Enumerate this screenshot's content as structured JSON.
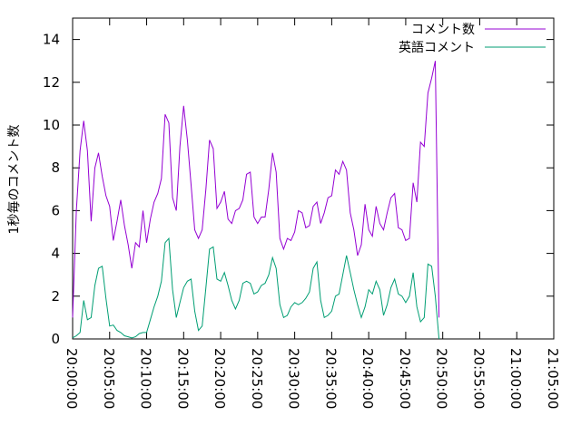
{
  "chart_data": {
    "type": "line",
    "title": "",
    "xlabel": "",
    "ylabel": "1秒毎のコメント数",
    "xlim": [
      0,
      65
    ],
    "ylim": [
      0,
      15
    ],
    "x_unit": "minutes after 20:00:00",
    "x_ticks": [
      0,
      5,
      10,
      15,
      20,
      25,
      30,
      35,
      40,
      45,
      50,
      55,
      60,
      65
    ],
    "x_tick_labels": [
      "20:00:00",
      "20:05:00",
      "20:10:00",
      "20:15:00",
      "20:20:00",
      "20:25:00",
      "20:30:00",
      "20:35:00",
      "20:40:00",
      "20:45:00",
      "20:50:00",
      "20:55:00",
      "21:00:00",
      "21:05:00"
    ],
    "y_ticks": [
      0,
      2,
      4,
      6,
      8,
      10,
      12,
      14
    ],
    "y_tick_labels": [
      "0",
      "2",
      "4",
      "6",
      "8",
      "10",
      "12",
      "14"
    ],
    "grid": false,
    "legend_position": "top-right",
    "series": [
      {
        "name": "コメント数",
        "color": "#9400d3",
        "points": [
          [
            0.0,
            1.0
          ],
          [
            0.5,
            6.0
          ],
          [
            1.0,
            8.8
          ],
          [
            1.5,
            10.2
          ],
          [
            2.0,
            8.8
          ],
          [
            2.5,
            5.5
          ],
          [
            3.0,
            8.0
          ],
          [
            3.5,
            8.7
          ],
          [
            4.0,
            7.6
          ],
          [
            4.5,
            6.7
          ],
          [
            5.0,
            6.2
          ],
          [
            5.5,
            4.6
          ],
          [
            6.0,
            5.5
          ],
          [
            6.5,
            6.5
          ],
          [
            7.0,
            5.3
          ],
          [
            7.5,
            4.4
          ],
          [
            8.0,
            3.3
          ],
          [
            8.5,
            4.5
          ],
          [
            9.0,
            4.3
          ],
          [
            9.5,
            6.0
          ],
          [
            10.0,
            4.5
          ],
          [
            10.5,
            5.6
          ],
          [
            11.0,
            6.4
          ],
          [
            11.5,
            6.8
          ],
          [
            12.0,
            7.5
          ],
          [
            12.5,
            10.5
          ],
          [
            13.0,
            10.1
          ],
          [
            13.5,
            6.6
          ],
          [
            14.0,
            6.0
          ],
          [
            14.5,
            9.0
          ],
          [
            15.0,
            10.9
          ],
          [
            15.5,
            9.3
          ],
          [
            16.0,
            7.2
          ],
          [
            16.5,
            5.1
          ],
          [
            17.0,
            4.7
          ],
          [
            17.5,
            5.1
          ],
          [
            18.0,
            7.0
          ],
          [
            18.5,
            9.3
          ],
          [
            19.0,
            8.9
          ],
          [
            19.5,
            6.1
          ],
          [
            20.0,
            6.4
          ],
          [
            20.5,
            6.9
          ],
          [
            21.0,
            5.6
          ],
          [
            21.5,
            5.4
          ],
          [
            22.0,
            6.0
          ],
          [
            22.5,
            6.1
          ],
          [
            23.0,
            6.5
          ],
          [
            23.5,
            7.7
          ],
          [
            24.0,
            7.8
          ],
          [
            24.5,
            5.7
          ],
          [
            25.0,
            5.4
          ],
          [
            25.5,
            5.7
          ],
          [
            26.0,
            5.7
          ],
          [
            26.5,
            7.0
          ],
          [
            27.0,
            8.7
          ],
          [
            27.5,
            7.8
          ],
          [
            28.0,
            4.7
          ],
          [
            28.5,
            4.2
          ],
          [
            29.0,
            4.7
          ],
          [
            29.5,
            4.6
          ],
          [
            30.0,
            5.0
          ],
          [
            30.5,
            6.0
          ],
          [
            31.0,
            5.9
          ],
          [
            31.5,
            5.2
          ],
          [
            32.0,
            5.3
          ],
          [
            32.5,
            6.2
          ],
          [
            33.0,
            6.4
          ],
          [
            33.5,
            5.4
          ],
          [
            34.0,
            5.9
          ],
          [
            34.5,
            6.6
          ],
          [
            35.0,
            6.7
          ],
          [
            35.5,
            7.9
          ],
          [
            36.0,
            7.7
          ],
          [
            36.5,
            8.3
          ],
          [
            37.0,
            7.9
          ],
          [
            37.5,
            5.9
          ],
          [
            38.0,
            5.1
          ],
          [
            38.5,
            3.9
          ],
          [
            39.0,
            4.4
          ],
          [
            39.5,
            6.3
          ],
          [
            40.0,
            5.1
          ],
          [
            40.5,
            4.8
          ],
          [
            41.0,
            6.2
          ],
          [
            41.5,
            5.4
          ],
          [
            42.0,
            5.1
          ],
          [
            42.5,
            5.9
          ],
          [
            43.0,
            6.6
          ],
          [
            43.5,
            6.8
          ],
          [
            44.0,
            5.2
          ],
          [
            44.5,
            5.1
          ],
          [
            45.0,
            4.6
          ],
          [
            45.5,
            4.7
          ],
          [
            46.0,
            7.3
          ],
          [
            46.5,
            6.4
          ],
          [
            47.0,
            9.2
          ],
          [
            47.5,
            9.0
          ],
          [
            48.0,
            11.5
          ],
          [
            48.5,
            12.2
          ],
          [
            49.0,
            13.0
          ],
          [
            49.5,
            1.0
          ]
        ]
      },
      {
        "name": "英語コメント",
        "color": "#009e73",
        "points": [
          [
            0.0,
            0.05
          ],
          [
            0.5,
            0.15
          ],
          [
            1.0,
            0.3
          ],
          [
            1.5,
            1.8
          ],
          [
            2.0,
            0.9
          ],
          [
            2.5,
            1.0
          ],
          [
            3.0,
            2.5
          ],
          [
            3.5,
            3.3
          ],
          [
            4.0,
            3.4
          ],
          [
            4.5,
            1.9
          ],
          [
            5.0,
            0.6
          ],
          [
            5.5,
            0.65
          ],
          [
            6.0,
            0.4
          ],
          [
            6.5,
            0.3
          ],
          [
            7.0,
            0.15
          ],
          [
            7.5,
            0.1
          ],
          [
            8.0,
            0.05
          ],
          [
            8.5,
            0.1
          ],
          [
            9.0,
            0.25
          ],
          [
            9.5,
            0.3
          ],
          [
            10.0,
            0.3
          ],
          [
            10.5,
            0.9
          ],
          [
            11.0,
            1.5
          ],
          [
            11.5,
            2.0
          ],
          [
            12.0,
            2.7
          ],
          [
            12.5,
            4.5
          ],
          [
            13.0,
            4.7
          ],
          [
            13.5,
            2.3
          ],
          [
            14.0,
            1.0
          ],
          [
            14.5,
            1.7
          ],
          [
            15.0,
            2.4
          ],
          [
            15.5,
            2.7
          ],
          [
            16.0,
            2.8
          ],
          [
            16.5,
            1.3
          ],
          [
            17.0,
            0.4
          ],
          [
            17.5,
            0.6
          ],
          [
            18.0,
            2.4
          ],
          [
            18.5,
            4.2
          ],
          [
            19.0,
            4.3
          ],
          [
            19.5,
            2.8
          ],
          [
            20.0,
            2.7
          ],
          [
            20.5,
            3.1
          ],
          [
            21.0,
            2.5
          ],
          [
            21.5,
            1.8
          ],
          [
            22.0,
            1.4
          ],
          [
            22.5,
            1.8
          ],
          [
            23.0,
            2.6
          ],
          [
            23.5,
            2.7
          ],
          [
            24.0,
            2.6
          ],
          [
            24.5,
            2.1
          ],
          [
            25.0,
            2.2
          ],
          [
            25.5,
            2.5
          ],
          [
            26.0,
            2.6
          ],
          [
            26.5,
            3.0
          ],
          [
            27.0,
            3.8
          ],
          [
            27.5,
            3.3
          ],
          [
            28.0,
            1.6
          ],
          [
            28.5,
            1.0
          ],
          [
            29.0,
            1.1
          ],
          [
            29.5,
            1.5
          ],
          [
            30.0,
            1.7
          ],
          [
            30.5,
            1.6
          ],
          [
            31.0,
            1.7
          ],
          [
            31.5,
            1.9
          ],
          [
            32.0,
            2.2
          ],
          [
            32.5,
            3.3
          ],
          [
            33.0,
            3.6
          ],
          [
            33.5,
            1.8
          ],
          [
            34.0,
            1.0
          ],
          [
            34.5,
            1.1
          ],
          [
            35.0,
            1.3
          ],
          [
            35.5,
            2.0
          ],
          [
            36.0,
            2.1
          ],
          [
            36.5,
            3.0
          ],
          [
            37.0,
            3.9
          ],
          [
            37.5,
            3.1
          ],
          [
            38.0,
            2.3
          ],
          [
            38.5,
            1.6
          ],
          [
            39.0,
            1.0
          ],
          [
            39.5,
            1.5
          ],
          [
            40.0,
            2.3
          ],
          [
            40.5,
            2.1
          ],
          [
            41.0,
            2.7
          ],
          [
            41.5,
            2.3
          ],
          [
            42.0,
            1.1
          ],
          [
            42.5,
            1.6
          ],
          [
            43.0,
            2.4
          ],
          [
            43.5,
            2.8
          ],
          [
            44.0,
            2.1
          ],
          [
            44.5,
            2.0
          ],
          [
            45.0,
            1.7
          ],
          [
            45.5,
            2.0
          ],
          [
            46.0,
            3.1
          ],
          [
            46.5,
            1.5
          ],
          [
            47.0,
            0.8
          ],
          [
            47.5,
            1.0
          ],
          [
            48.0,
            3.5
          ],
          [
            48.5,
            3.4
          ],
          [
            49.0,
            2.0
          ],
          [
            49.5,
            0.0
          ]
        ]
      }
    ]
  }
}
